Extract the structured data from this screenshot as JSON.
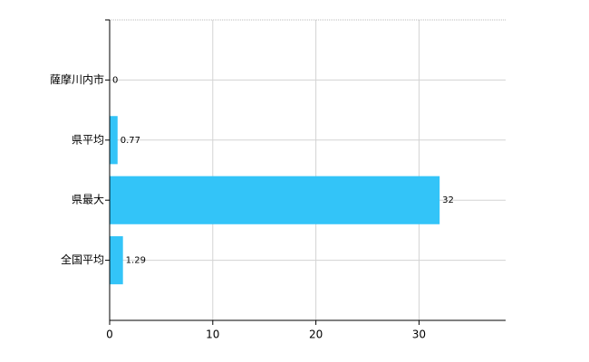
{
  "chart_data": {
    "type": "barh",
    "categories": [
      "薩摩川内市",
      "県平均",
      "県最大",
      "全国平均"
    ],
    "values": [
      0,
      0.77,
      32,
      1.29
    ],
    "color": "#33c4f8",
    "xlim": [
      0,
      38.4
    ],
    "xticks": [
      0,
      10,
      20,
      30
    ],
    "grid": true
  }
}
